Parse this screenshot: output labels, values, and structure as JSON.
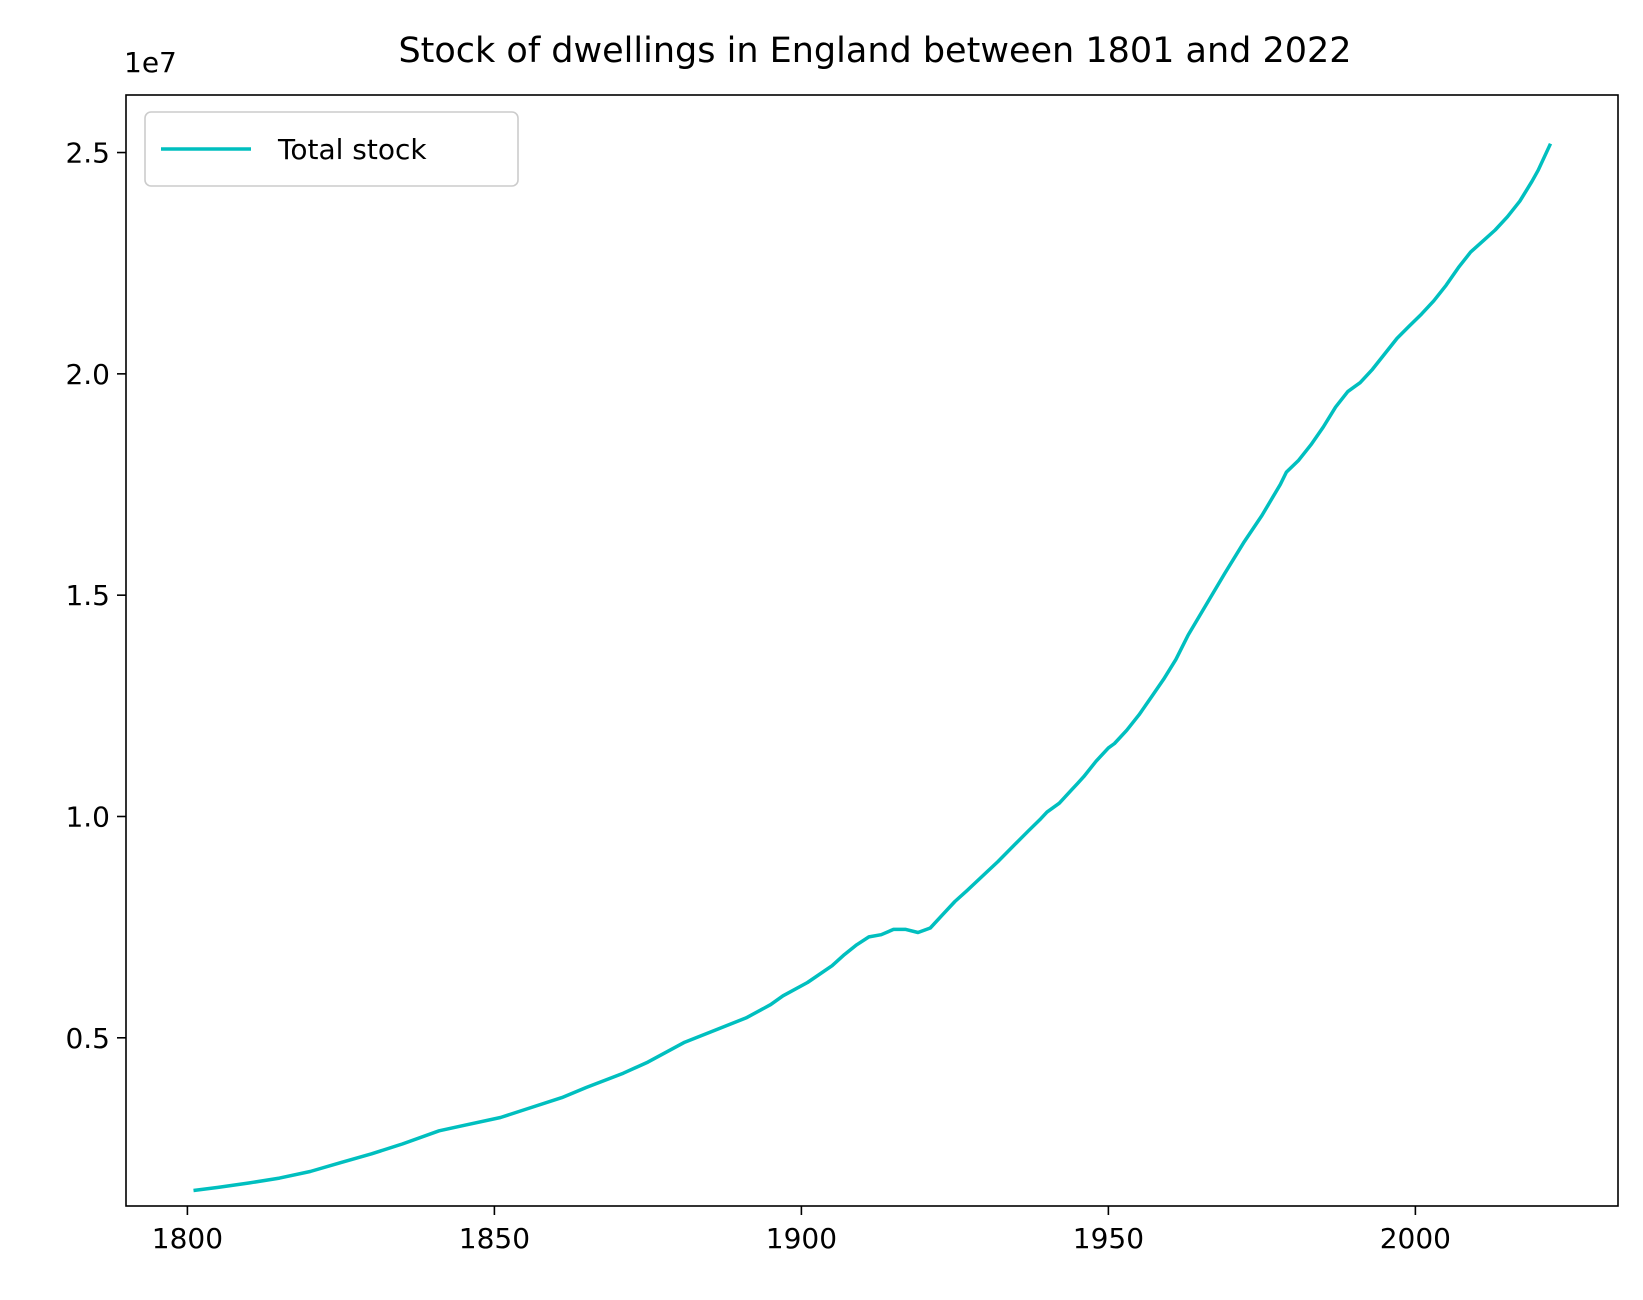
{
  "chart_data": {
    "type": "line",
    "title": "Stock of dwellings in England between 1801 and 2022",
    "xlabel": "",
    "ylabel": "",
    "y_offset_label": "1e7",
    "xlim": [
      1790,
      2033
    ],
    "ylim": [
      0.12,
      2.63
    ],
    "x_ticks": [
      1800,
      1850,
      1900,
      1950,
      2000
    ],
    "x_tick_labels": [
      "1800",
      "1850",
      "1900",
      "1950",
      "2000"
    ],
    "y_ticks": [
      0.5,
      1.0,
      1.5,
      2.0,
      2.5
    ],
    "y_tick_labels": [
      "0.5",
      "1.0",
      "1.5",
      "2.0",
      "2.5"
    ],
    "grid": false,
    "legend": {
      "position": "top-left",
      "entries": [
        "Total stock"
      ]
    },
    "series": [
      {
        "name": "Total stock",
        "color": "#00bfbf",
        "x": [
          1801,
          1805,
          1810,
          1815,
          1820,
          1825,
          1830,
          1835,
          1841,
          1845,
          1851,
          1855,
          1861,
          1865,
          1871,
          1875,
          1881,
          1885,
          1891,
          1895,
          1897,
          1901,
          1905,
          1907,
          1909,
          1911,
          1913,
          1915,
          1917,
          1919,
          1921,
          1923,
          1925,
          1927,
          1930,
          1932,
          1935,
          1937,
          1939,
          1940,
          1942,
          1944,
          1945,
          1946,
          1948,
          1950,
          1951,
          1953,
          1955,
          1957,
          1959,
          1961,
          1963,
          1966,
          1969,
          1972,
          1975,
          1978,
          1979,
          1981,
          1983,
          1985,
          1987,
          1989,
          1990,
          1991,
          1993,
          1995,
          1997,
          1999,
          2001,
          2003,
          2005,
          2007,
          2009,
          2011,
          2013,
          2015,
          2017,
          2019,
          2020,
          2022
        ],
        "values": [
          0.155,
          0.162,
          0.172,
          0.183,
          0.198,
          0.218,
          0.238,
          0.26,
          0.29,
          0.302,
          0.32,
          0.338,
          0.365,
          0.388,
          0.42,
          0.445,
          0.49,
          0.512,
          0.545,
          0.575,
          0.595,
          0.625,
          0.663,
          0.688,
          0.71,
          0.728,
          0.733,
          0.745,
          0.745,
          0.738,
          0.748,
          0.778,
          0.808,
          0.833,
          0.872,
          0.898,
          0.94,
          0.968,
          0.995,
          1.01,
          1.03,
          1.06,
          1.075,
          1.09,
          1.125,
          1.155,
          1.165,
          1.195,
          1.23,
          1.27,
          1.31,
          1.355,
          1.41,
          1.48,
          1.55,
          1.618,
          1.68,
          1.75,
          1.778,
          1.805,
          1.84,
          1.88,
          1.925,
          1.96,
          1.97,
          1.98,
          2.01,
          2.045,
          2.08,
          2.108,
          2.135,
          2.165,
          2.2,
          2.24,
          2.275,
          2.3,
          2.325,
          2.355,
          2.39,
          2.435,
          2.46,
          2.52
        ]
      }
    ]
  }
}
